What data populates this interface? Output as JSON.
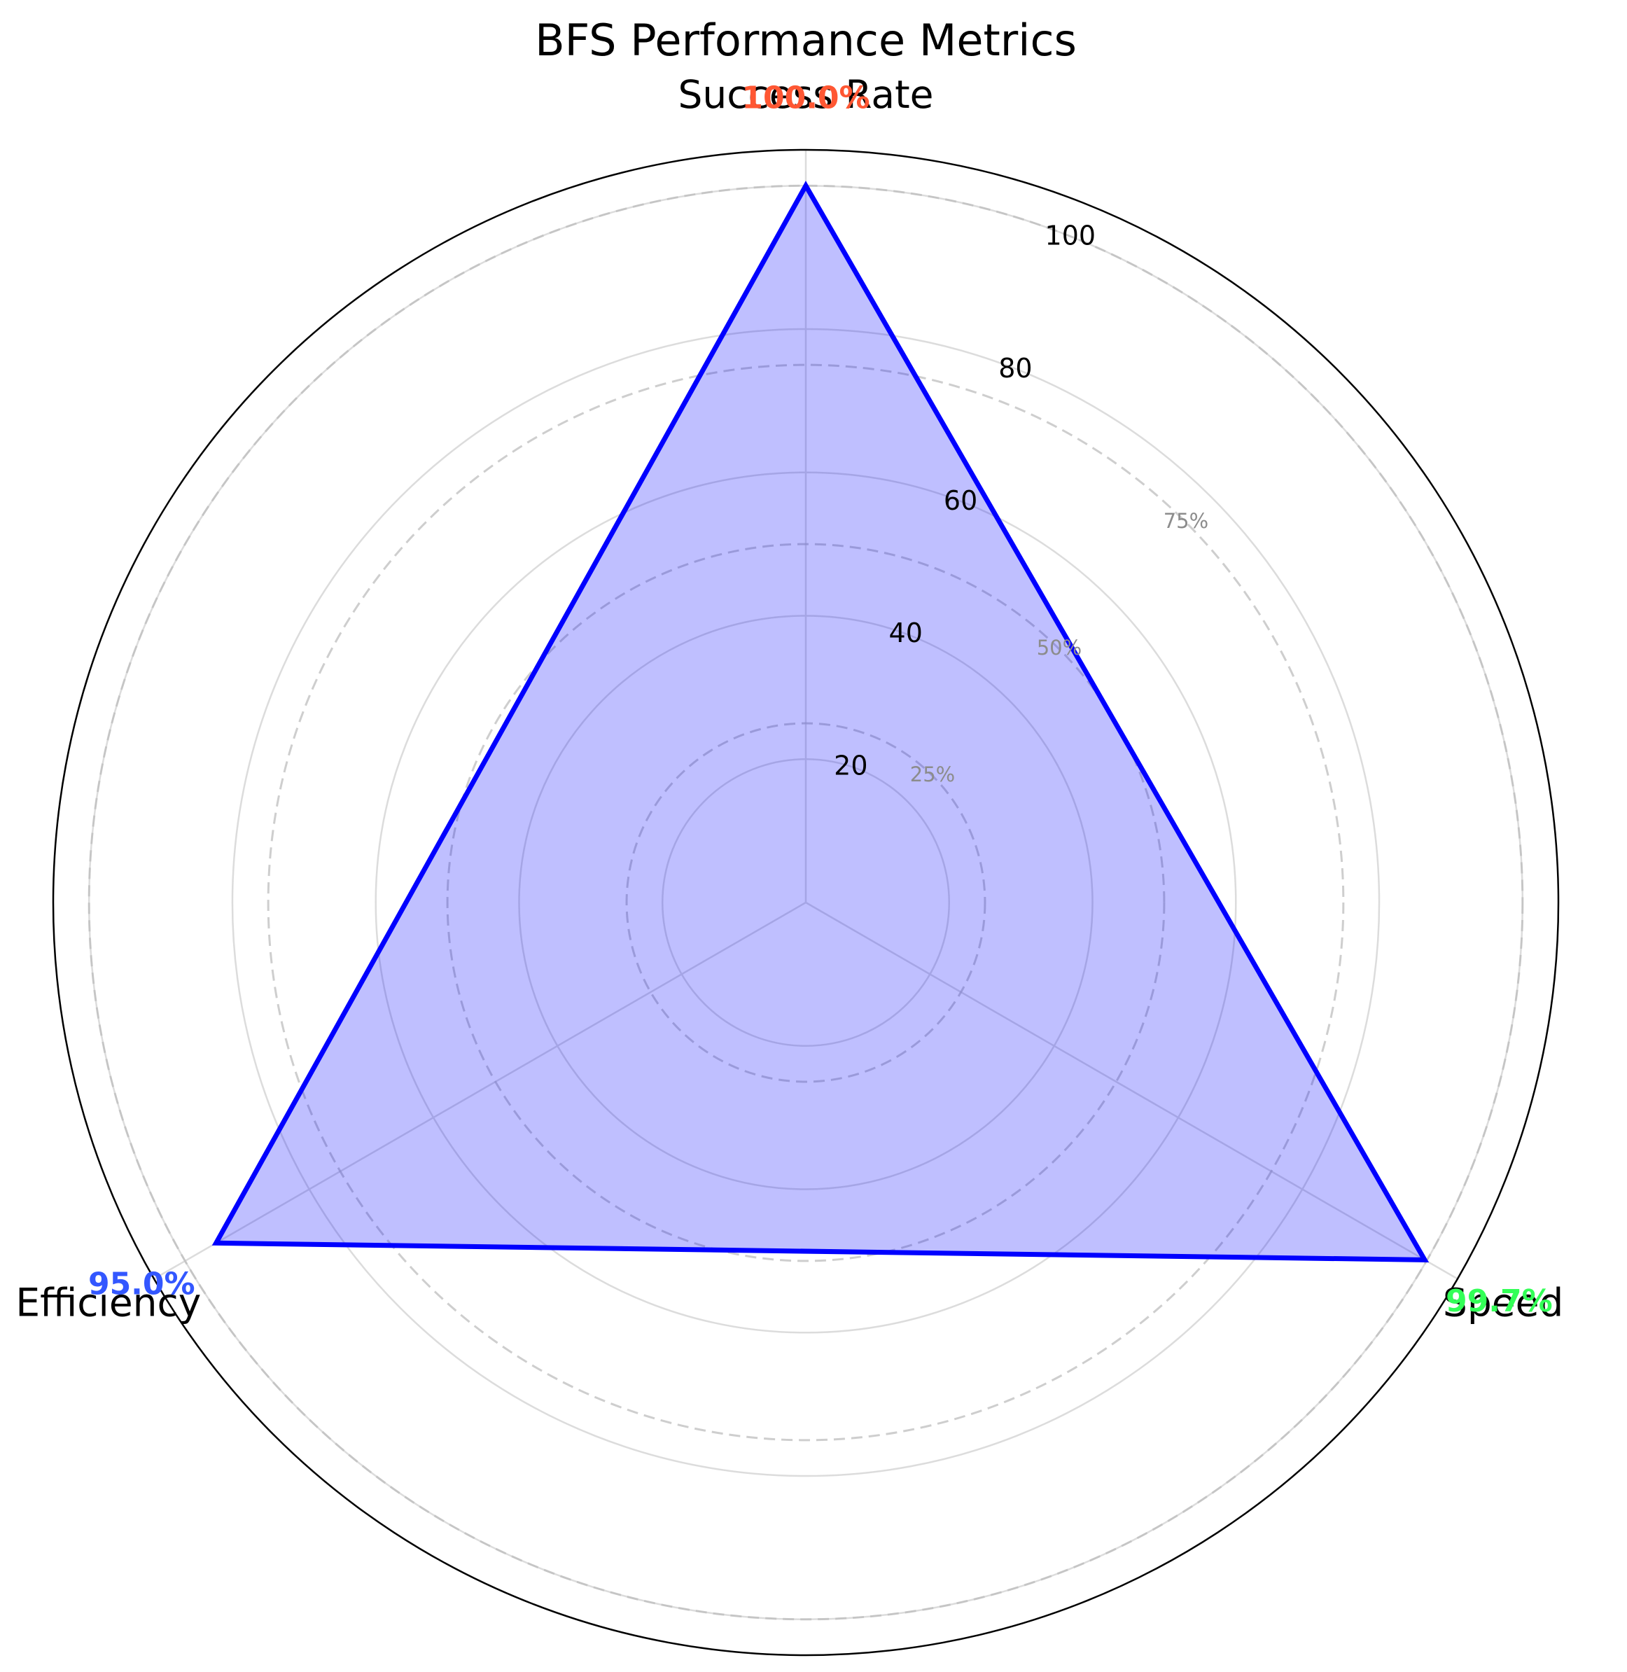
{
  "chart_data": {
    "type": "radar",
    "title": "BFS Performance Metrics",
    "categories": [
      "Success Rate",
      "Speed",
      "Efficiency"
    ],
    "series": [
      {
        "values": [
          100.0,
          99.7,
          95.0
        ],
        "color": "#0000ff",
        "fill_color": "#0000ff",
        "fill_opacity": 0.25
      }
    ],
    "value_labels": [
      {
        "text": "100.0%",
        "value": 100.0,
        "color": "#ff5733"
      },
      {
        "text": "99.7%",
        "value": 99.7,
        "color": "#33ff57"
      },
      {
        "text": "95.0%",
        "value": 95.0,
        "color": "#3357ff"
      }
    ],
    "radial_ticks": [
      20,
      40,
      60,
      80,
      100
    ],
    "radial_tick_labels": [
      "20",
      "40",
      "60",
      "80",
      "100"
    ],
    "reference_rings": [
      {
        "value": 25,
        "label": "25%"
      },
      {
        "value": 50,
        "label": "50%"
      },
      {
        "value": 75,
        "label": "75%"
      },
      {
        "value": 100,
        "label": ""
      }
    ],
    "rlim": [
      0,
      105
    ],
    "grid": true
  }
}
